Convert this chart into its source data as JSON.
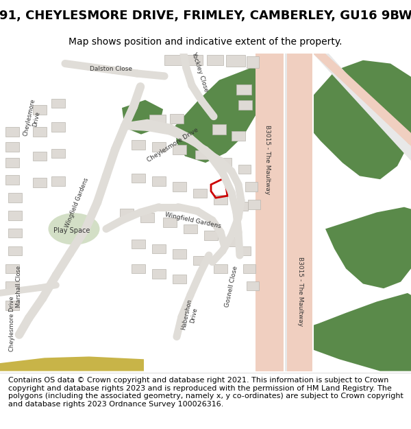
{
  "title": "91, CHEYLESMORE DRIVE, FRIMLEY, CAMBERLEY, GU16 9BW",
  "subtitle": "Map shows position and indicative extent of the property.",
  "footer": "Contains OS data © Crown copyright and database right 2021. This information is subject to Crown copyright and database rights 2023 and is reproduced with the permission of HM Land Registry. The polygons (including the associated geometry, namely x, y co-ordinates) are subject to Crown copyright and database rights 2023 Ordnance Survey 100026316.",
  "bg_color": "#ffffff",
  "map_bg": "#f2f0ed",
  "road_color": "#f0cfc0",
  "green_color": "#5a8a4a",
  "light_green": "#c8d8b8",
  "building_color": "#dedad5",
  "building_border": "#b8b4ae",
  "plot_color": "#cc0000",
  "title_fontsize": 13,
  "subtitle_fontsize": 10,
  "footer_fontsize": 8
}
